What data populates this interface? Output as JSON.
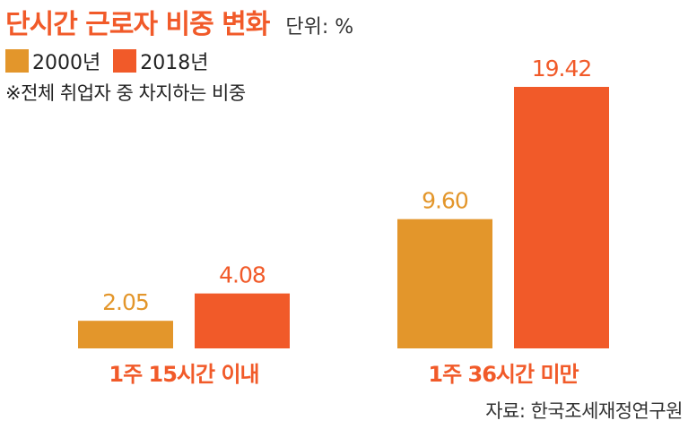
{
  "header": {
    "title": "단시간 근로자 비중 변화",
    "unit": "단위: %",
    "note": "※전체 취업자 중 차지하는 비중"
  },
  "colors": {
    "series_2000": "#e3962b",
    "series_2018": "#f15a29",
    "title": "#f15a29"
  },
  "chart_data": {
    "type": "bar",
    "title": "단시간 근로자 비중 변화",
    "categories": [
      "1주 15시간 이내",
      "1주 36시간 미만"
    ],
    "series": [
      {
        "name": "2000년",
        "values": [
          2.05,
          9.6
        ],
        "labels": [
          "2.05",
          "9.60"
        ]
      },
      {
        "name": "2018년",
        "values": [
          4.08,
          19.42
        ],
        "labels": [
          "4.08",
          "19.42"
        ]
      }
    ],
    "xlabel": "",
    "ylabel": "",
    "ylim": [
      0,
      19.42
    ],
    "grid": false,
    "legend": "top-left"
  },
  "source": "자료: 한국조세재정연구원"
}
